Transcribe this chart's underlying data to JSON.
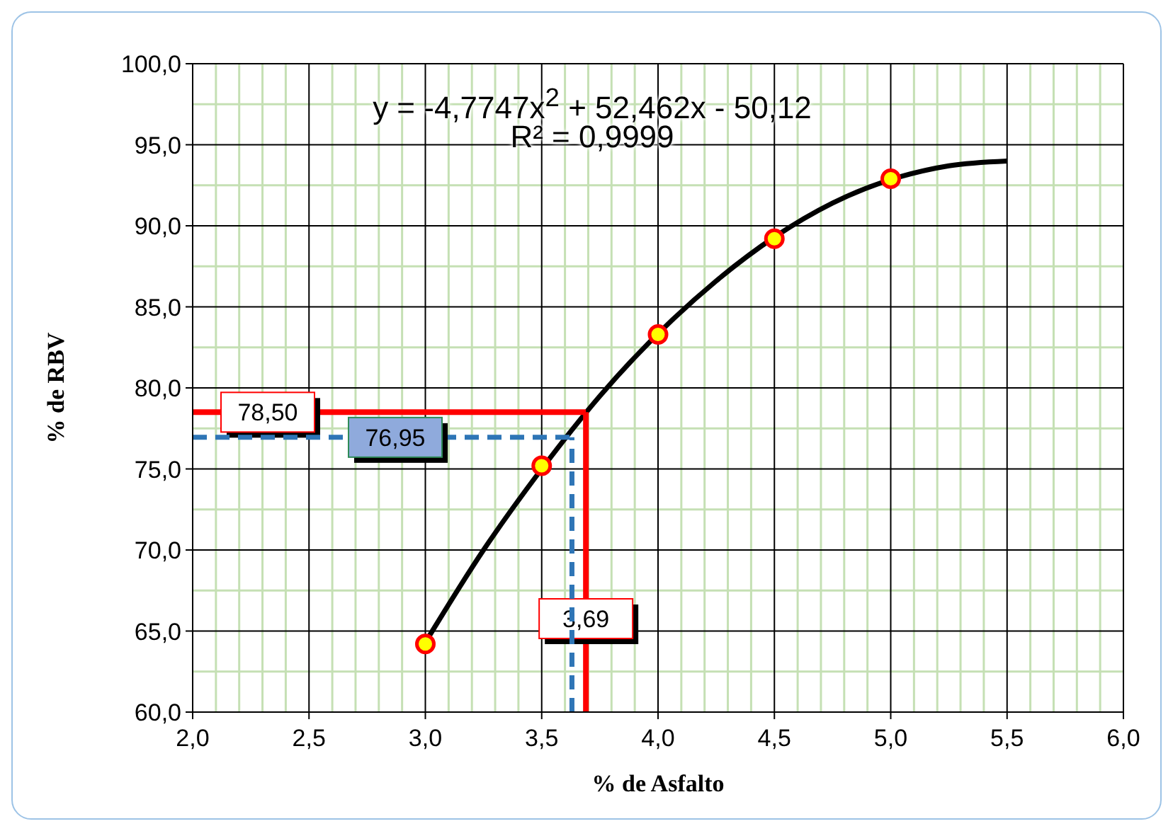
{
  "chart_data": {
    "type": "scatter",
    "xlabel": "% de Asfalto",
    "ylabel": "% de RBV",
    "series": [
      {
        "color": "#ffff00",
        "marker": "circle",
        "x": [
          3.0,
          3.5,
          4.0,
          4.5,
          5.0
        ],
        "values": [
          64.2,
          75.2,
          83.3,
          89.2,
          92.9
        ]
      },
      {
        "type": "line",
        "color": "#000000",
        "marker": "none",
        "x": [
          3.0,
          3.25,
          3.5,
          3.75,
          4.25,
          4.5,
          4.75,
          5.25,
          5.5
        ],
        "values": [
          64.3,
          70.0,
          75.0,
          79.5,
          86.6,
          89.3,
          91.4,
          93.7,
          94.0
        ]
      }
    ],
    "xlim": [
      2.0,
      6.0
    ],
    "xticks": [
      {
        "value": 2.0,
        "label": "2,0"
      },
      {
        "value": 2.1,
        "label": null
      },
      {
        "value": 2.2,
        "label": null
      },
      {
        "value": 2.3,
        "label": null
      },
      {
        "value": 2.4,
        "label": null
      },
      {
        "value": 2.5,
        "label": "2,5"
      },
      {
        "value": 2.6,
        "label": null
      },
      {
        "value": 2.7,
        "label": null
      },
      {
        "value": 2.8,
        "label": null
      },
      {
        "value": 2.9,
        "label": null
      },
      {
        "value": 3.0,
        "label": "3,0"
      },
      {
        "value": 3.1,
        "label": null
      },
      {
        "value": 3.2,
        "label": null
      },
      {
        "value": 3.3,
        "label": null
      },
      {
        "value": 3.4,
        "label": null
      },
      {
        "value": 3.5,
        "label": "3,5"
      },
      {
        "value": 3.6,
        "label": null
      },
      {
        "value": 3.7,
        "label": null
      },
      {
        "value": 3.8,
        "label": null
      },
      {
        "value": 3.9,
        "label": null
      },
      {
        "value": 4.0,
        "label": "4,0"
      },
      {
        "value": 4.1,
        "label": null
      },
      {
        "value": 4.2,
        "label": null
      },
      {
        "value": 4.3,
        "label": null
      },
      {
        "value": 4.4,
        "label": null
      },
      {
        "value": 4.5,
        "label": "4,5"
      },
      {
        "value": 4.6,
        "label": null
      },
      {
        "value": 4.7,
        "label": null
      },
      {
        "value": 4.8,
        "label": null
      },
      {
        "value": 4.9,
        "label": null
      },
      {
        "value": 5.0,
        "label": "5,0"
      },
      {
        "value": 5.1,
        "label": null
      },
      {
        "value": 5.2,
        "label": null
      },
      {
        "value": 5.3,
        "label": null
      },
      {
        "value": 5.4,
        "label": null
      },
      {
        "value": 5.5,
        "label": "5,5"
      },
      {
        "value": 5.6,
        "label": null
      },
      {
        "value": 5.7,
        "label": null
      },
      {
        "value": 5.8,
        "label": null
      },
      {
        "value": 5.9,
        "label": null
      },
      {
        "value": 6.0,
        "label": "6,0"
      }
    ],
    "ylim": [
      60.0,
      100.0
    ],
    "yticks": [
      {
        "value": 60.0,
        "label": "60,0"
      },
      {
        "value": 62.5,
        "label": null
      },
      {
        "value": 65.0,
        "label": "65,0"
      },
      {
        "value": 67.5,
        "label": null
      },
      {
        "value": 70.0,
        "label": "70,0"
      },
      {
        "value": 72.5,
        "label": null
      },
      {
        "value": 75.0,
        "label": "75,0"
      },
      {
        "value": 77.5,
        "label": null
      },
      {
        "value": 80.0,
        "label": "80,0"
      },
      {
        "value": 82.5,
        "label": null
      },
      {
        "value": 85.0,
        "label": "85,0"
      },
      {
        "value": 87.5,
        "label": null
      },
      {
        "value": 90.0,
        "label": "90,0"
      },
      {
        "value": 92.5,
        "label": null
      },
      {
        "value": 95.0,
        "label": "95,0"
      },
      {
        "value": 97.5,
        "label": null
      },
      {
        "value": 100.0,
        "label": "100,0"
      }
    ],
    "grid": true,
    "legend": false,
    "ref_lines": [
      {
        "axis": "y",
        "value": 78.5,
        "label": "78,50",
        "color": "#ff0000",
        "line_style": "solid"
      },
      {
        "axis": "x",
        "value": 3.69,
        "label": "3,69",
        "color": "#ff0000",
        "line_style": "solid"
      },
      {
        "axis": "y",
        "value": 76.95,
        "label": "76,95",
        "color": "#2e75b6",
        "line_style": "dashed"
      },
      {
        "axis": "x",
        "value": 3.63,
        "label": null,
        "color": "#2e75b6",
        "line_style": "dashed"
      }
    ],
    "annotations": [
      "y = -4,7747x$^{2}$ + 52,462x - 50,12",
      "R² = 0,9999"
    ]
  }
}
